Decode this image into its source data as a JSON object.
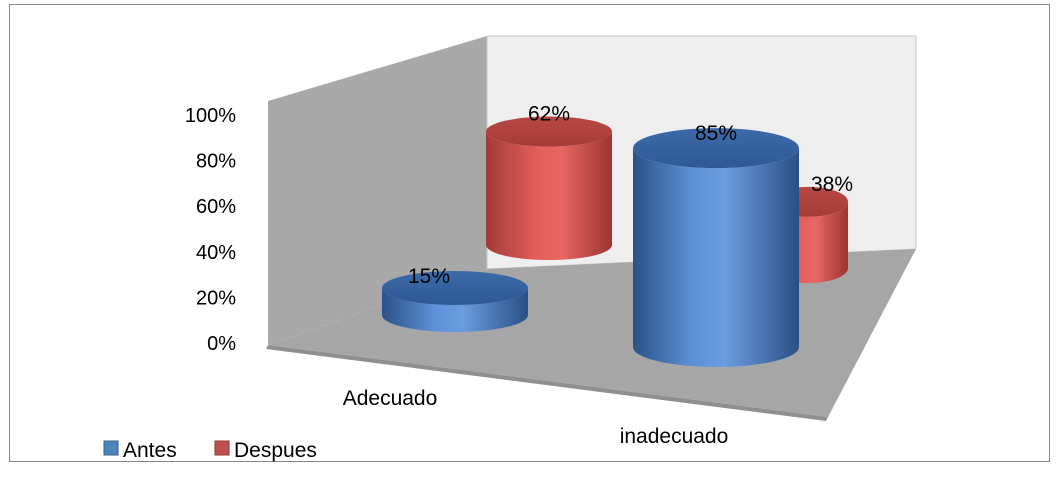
{
  "chart_data": {
    "type": "bar",
    "style": "3d-cylinder",
    "categories": [
      "Adecuado",
      "inadecuado"
    ],
    "series": [
      {
        "name": "Antes",
        "values": [
          15,
          85
        ],
        "labels": [
          "15%",
          "85%"
        ],
        "color": "#4f81bd"
      },
      {
        "name": "Despues",
        "values": [
          62,
          38
        ],
        "labels": [
          "62%",
          "38%"
        ],
        "color": "#c0504d"
      }
    ],
    "yticks": [
      "0%",
      "20%",
      "40%",
      "60%",
      "80%",
      "100%"
    ],
    "ylim": [
      0,
      100
    ],
    "grid": false,
    "legend_position": "bottom-left"
  }
}
